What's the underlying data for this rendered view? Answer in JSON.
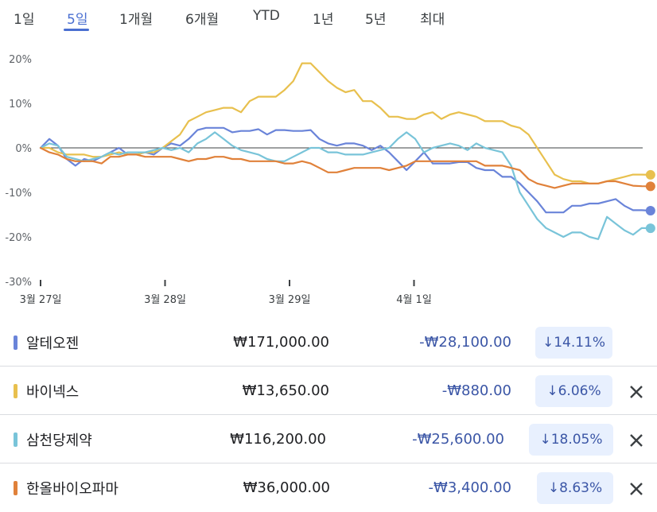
{
  "tabs": [
    "1일",
    "5일",
    "1개월",
    "6개월",
    "YTD",
    "1년",
    "5년",
    "최대"
  ],
  "active_tab": "5일",
  "colors": {
    "alteogen": "#6a84d9",
    "vaiv": "#e8c04e",
    "samchundang": "#79c4d9",
    "hanall": "#e0813a",
    "zero_line": "#3c4043",
    "tab_active": "#4a6fd1"
  },
  "chart_data": {
    "type": "line",
    "x_ticks": [
      "3월 27일",
      "3월 28일",
      "3월 29일",
      "4월 1일"
    ],
    "y_ticks": [
      "20%",
      "10%",
      "0%",
      "-10%",
      "-20%",
      "-30%"
    ],
    "ylim": [
      -30,
      20
    ],
    "grid": false,
    "x_unit": "trading days from 3월 27일 open (ticks at 0,1,2,3)",
    "xlim": [
      0,
      4.9
    ],
    "series": [
      {
        "name": "알테오젠",
        "color": "#6a84d9",
        "x": [
          0,
          0.07,
          0.14,
          0.21,
          0.28,
          0.35,
          0.42,
          0.49,
          0.56,
          0.63,
          0.7,
          0.77,
          0.84,
          0.91,
          0.98,
          1.05,
          1.12,
          1.19,
          1.26,
          1.33,
          1.4,
          1.47,
          1.54,
          1.61,
          1.68,
          1.75,
          1.82,
          1.89,
          1.96,
          2.03,
          2.1,
          2.17,
          2.24,
          2.31,
          2.38,
          2.45,
          2.52,
          2.59,
          2.66,
          2.73,
          2.8,
          2.87,
          2.94,
          3.01,
          3.08,
          3.15,
          3.22,
          3.29,
          3.36,
          3.43,
          3.5,
          3.57,
          3.64,
          3.71,
          3.78,
          3.85,
          3.92,
          3.99,
          4.06,
          4.13,
          4.2,
          4.27,
          4.34,
          4.41,
          4.48,
          4.55,
          4.62,
          4.69,
          4.76,
          4.83,
          4.9
        ],
        "values": [
          0,
          2,
          0.5,
          -2.5,
          -4,
          -2.5,
          -3,
          -2,
          -1,
          0,
          -1.5,
          -1.5,
          -1,
          -1.5,
          0,
          1,
          0.5,
          2,
          4,
          4.5,
          4.5,
          4.5,
          3.5,
          3.8,
          3.8,
          4.2,
          3,
          4,
          4,
          3.8,
          3.8,
          4,
          2,
          1,
          0.5,
          1,
          1,
          0.5,
          -0.5,
          0.5,
          -1,
          -3,
          -5,
          -3,
          -1,
          -3.5,
          -3.5,
          -3.5,
          -3.2,
          -3.2,
          -4.5,
          -5,
          -5,
          -6.5,
          -6.5,
          -8,
          -10,
          -12,
          -14.5,
          -14.5,
          -14.5,
          -13,
          -13,
          -12.5,
          -12.5,
          -12,
          -11.5,
          -13,
          -14,
          -14,
          -14.1
        ]
      },
      {
        "name": "바이넥스",
        "color": "#e8c04e",
        "x": [
          0,
          0.07,
          0.14,
          0.21,
          0.28,
          0.35,
          0.42,
          0.49,
          0.56,
          0.63,
          0.7,
          0.77,
          0.84,
          0.91,
          0.98,
          1.05,
          1.12,
          1.19,
          1.26,
          1.33,
          1.4,
          1.47,
          1.54,
          1.61,
          1.68,
          1.75,
          1.82,
          1.89,
          1.96,
          2.03,
          2.1,
          2.17,
          2.24,
          2.31,
          2.38,
          2.45,
          2.52,
          2.59,
          2.66,
          2.73,
          2.8,
          2.87,
          2.94,
          3.01,
          3.08,
          3.15,
          3.22,
          3.29,
          3.36,
          3.43,
          3.5,
          3.57,
          3.64,
          3.71,
          3.78,
          3.85,
          3.92,
          3.99,
          4.06,
          4.13,
          4.2,
          4.27,
          4.34,
          4.41,
          4.48,
          4.55,
          4.62,
          4.69,
          4.76,
          4.83,
          4.9
        ],
        "values": [
          0,
          0,
          -1,
          -1.5,
          -1.5,
          -1.5,
          -2,
          -2,
          -1.5,
          -1,
          -1.5,
          -1.5,
          -1,
          -1,
          0,
          1.5,
          3,
          6,
          7,
          8,
          8.5,
          9,
          9,
          8,
          10.5,
          11.5,
          11.5,
          11.5,
          13,
          15,
          19,
          19,
          17,
          15,
          13.5,
          12.5,
          13,
          10.5,
          10.5,
          9,
          7,
          7,
          6.5,
          6.5,
          7.5,
          8,
          6.5,
          7.5,
          8,
          7.5,
          7,
          6,
          6,
          6,
          5,
          4.5,
          3,
          0,
          -3,
          -6,
          -7,
          -7.5,
          -7.5,
          -8,
          -8,
          -7.5,
          -7,
          -6.5,
          -6,
          -6,
          -6.06
        ]
      },
      {
        "name": "삼천당제약",
        "color": "#79c4d9",
        "x": [
          0,
          0.07,
          0.14,
          0.21,
          0.28,
          0.35,
          0.42,
          0.49,
          0.56,
          0.63,
          0.7,
          0.77,
          0.84,
          0.91,
          0.98,
          1.05,
          1.12,
          1.19,
          1.26,
          1.33,
          1.4,
          1.47,
          1.54,
          1.61,
          1.68,
          1.75,
          1.82,
          1.89,
          1.96,
          2.03,
          2.1,
          2.17,
          2.24,
          2.31,
          2.38,
          2.45,
          2.52,
          2.59,
          2.66,
          2.73,
          2.8,
          2.87,
          2.94,
          3.01,
          3.08,
          3.15,
          3.22,
          3.29,
          3.36,
          3.43,
          3.5,
          3.57,
          3.64,
          3.71,
          3.78,
          3.85,
          3.92,
          3.99,
          4.06,
          4.13,
          4.2,
          4.27,
          4.34,
          4.41,
          4.48,
          4.55,
          4.62,
          4.69,
          4.76,
          4.83,
          4.9
        ],
        "values": [
          0,
          1,
          0.5,
          -2,
          -2.5,
          -3,
          -2.5,
          -2,
          -1,
          -1.5,
          -1,
          -1,
          -1,
          -0.5,
          0,
          -0.5,
          0,
          -1,
          1,
          2,
          3.5,
          2,
          0.5,
          -0.5,
          -1,
          -1.5,
          -2.5,
          -3,
          -3,
          -2,
          -1,
          0,
          0,
          -1,
          -1,
          -1.5,
          -1.5,
          -1.5,
          -1,
          -0.5,
          0,
          2,
          3.5,
          2,
          -1,
          0,
          0.5,
          1,
          0.5,
          -0.5,
          1,
          0,
          -0.5,
          -1,
          -4,
          -10,
          -13,
          -16,
          -18,
          -19,
          -20,
          -19,
          -19,
          -20,
          -20.5,
          -15.5,
          -17,
          -18.5,
          -19.5,
          -18,
          -18.05
        ]
      },
      {
        "name": "한올바이오파마",
        "color": "#e0813a",
        "x": [
          0,
          0.07,
          0.14,
          0.21,
          0.28,
          0.35,
          0.42,
          0.49,
          0.56,
          0.63,
          0.7,
          0.77,
          0.84,
          0.91,
          0.98,
          1.05,
          1.12,
          1.19,
          1.26,
          1.33,
          1.4,
          1.47,
          1.54,
          1.61,
          1.68,
          1.75,
          1.82,
          1.89,
          1.96,
          2.03,
          2.1,
          2.17,
          2.24,
          2.31,
          2.38,
          2.45,
          2.52,
          2.59,
          2.66,
          2.73,
          2.8,
          2.87,
          2.94,
          3.01,
          3.08,
          3.15,
          3.22,
          3.29,
          3.36,
          3.43,
          3.5,
          3.57,
          3.64,
          3.71,
          3.78,
          3.85,
          3.92,
          3.99,
          4.06,
          4.13,
          4.2,
          4.27,
          4.34,
          4.41,
          4.48,
          4.55,
          4.62,
          4.69,
          4.76,
          4.83,
          4.9
        ],
        "values": [
          0,
          -1,
          -1.5,
          -2.5,
          -3,
          -3,
          -3,
          -3.5,
          -2,
          -2,
          -1.5,
          -1.5,
          -2,
          -2,
          -2,
          -2,
          -2.5,
          -3,
          -2.5,
          -2.5,
          -2,
          -2,
          -2.5,
          -2.5,
          -3,
          -3,
          -3,
          -3,
          -3.5,
          -3.5,
          -3,
          -3.5,
          -4.5,
          -5.5,
          -5.5,
          -5,
          -4.5,
          -4.5,
          -4.5,
          -4.5,
          -5,
          -4.5,
          -4,
          -3,
          -3,
          -3,
          -3,
          -3,
          -3,
          -3,
          -3,
          -4,
          -4,
          -4,
          -4.5,
          -5,
          -7,
          -8,
          -8.5,
          -9,
          -8.5,
          -8,
          -8,
          -8,
          -8,
          -7.5,
          -7.5,
          -8,
          -8.5,
          -8.6,
          -8.63
        ]
      }
    ]
  },
  "rows": [
    {
      "name": "알테오젠",
      "price": "₩171,000.00",
      "change": "-₩28,100.00",
      "pct": "14.11%",
      "removable": false
    },
    {
      "name": "바이넥스",
      "price": "₩13,650.00",
      "change": "-₩880.00",
      "pct": "6.06%",
      "removable": true
    },
    {
      "name": "삼천당제약",
      "price": "₩116,200.00",
      "change": "-₩25,600.00",
      "pct": "18.05%",
      "removable": true
    },
    {
      "name": "한올바이오파마",
      "price": "₩36,000.00",
      "change": "-₩3,400.00",
      "pct": "8.63%",
      "removable": true
    }
  ]
}
